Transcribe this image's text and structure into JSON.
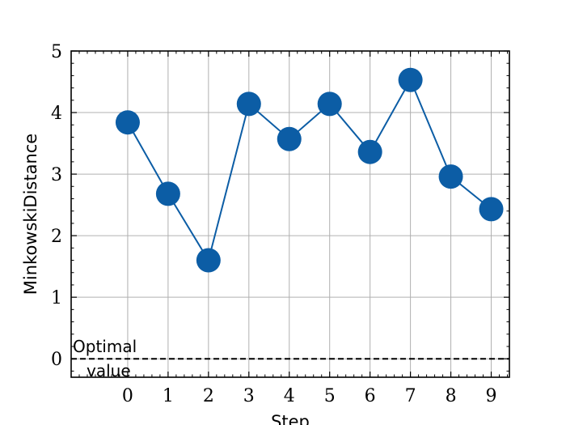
{
  "chart_data": {
    "type": "line",
    "xlabel": "Step",
    "ylabel": "MinkowskiDistance",
    "x": [
      0,
      1,
      2,
      3,
      4,
      5,
      6,
      7,
      8,
      9
    ],
    "series": [
      {
        "values": [
          3.84,
          2.68,
          1.6,
          4.14,
          3.57,
          4.14,
          3.36,
          4.53,
          2.96,
          2.43
        ]
      }
    ],
    "xticks": [
      "0",
      "1",
      "2",
      "3",
      "4",
      "5",
      "6",
      "7",
      "8",
      "9"
    ],
    "yticks": [
      "0",
      "1",
      "2",
      "3",
      "4",
      "5"
    ],
    "xlim": [
      -1.4,
      9.45
    ],
    "ylim": [
      -0.3,
      5
    ],
    "grid": true,
    "reference_line": {
      "y": 0,
      "style": "dashed",
      "label": "Optimal value",
      "label_lines": [
        "Optimal",
        "value"
      ]
    },
    "colors": {
      "series": "#0c5da5",
      "grid": "#b0b0b0",
      "reference": "#000000"
    }
  }
}
